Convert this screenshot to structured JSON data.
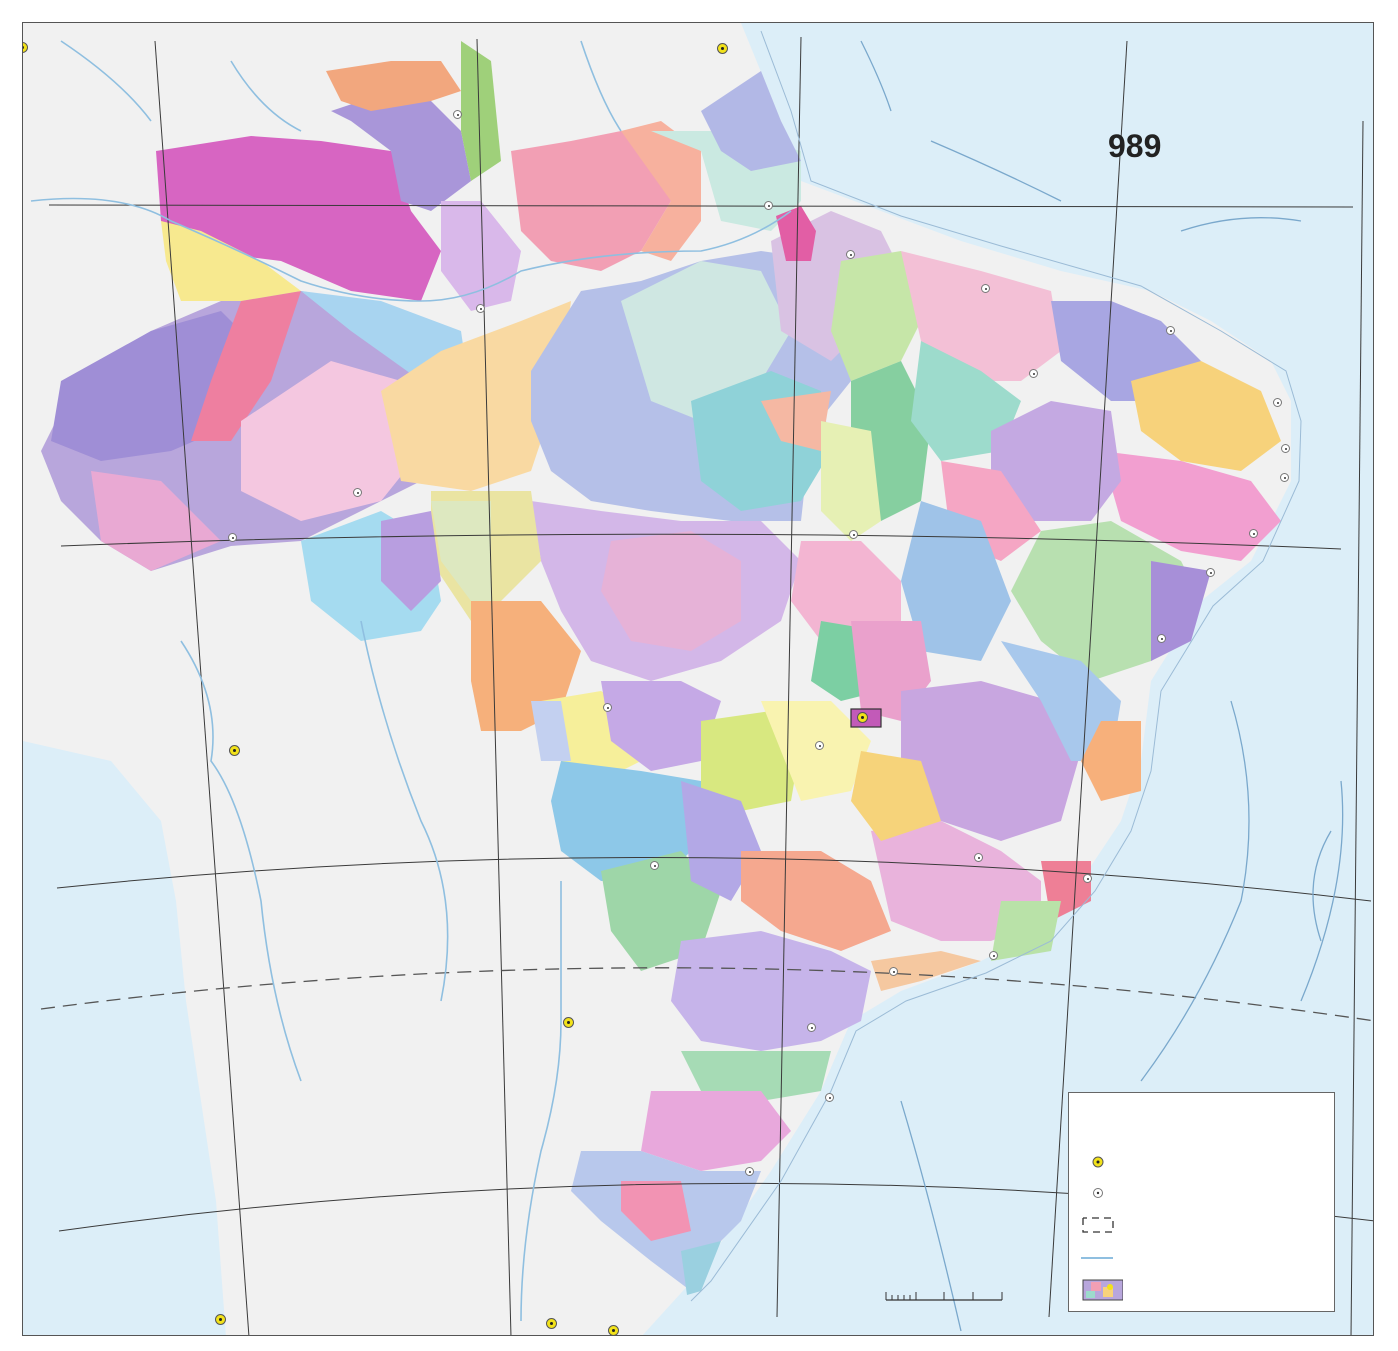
{
  "page_number": "989",
  "colors": {
    "ocean": "#dceef8",
    "land_outside": "#f1f1f1",
    "river": "#8fbfe0",
    "boundary": "#444444",
    "graticule": "#3a3a3a",
    "capital_marker": "#f2e21a"
  },
  "legend": {
    "items": [
      {
        "symbol": "national-capital-marker",
        "label": ""
      },
      {
        "symbol": "city-marker",
        "label": ""
      },
      {
        "symbol": "international-boundary-dashed",
        "label": ""
      },
      {
        "symbol": "river-line",
        "label": ""
      },
      {
        "symbol": "regions-color-swatch",
        "label": ""
      }
    ]
  },
  "scale_bar": {
    "label": ""
  }
}
